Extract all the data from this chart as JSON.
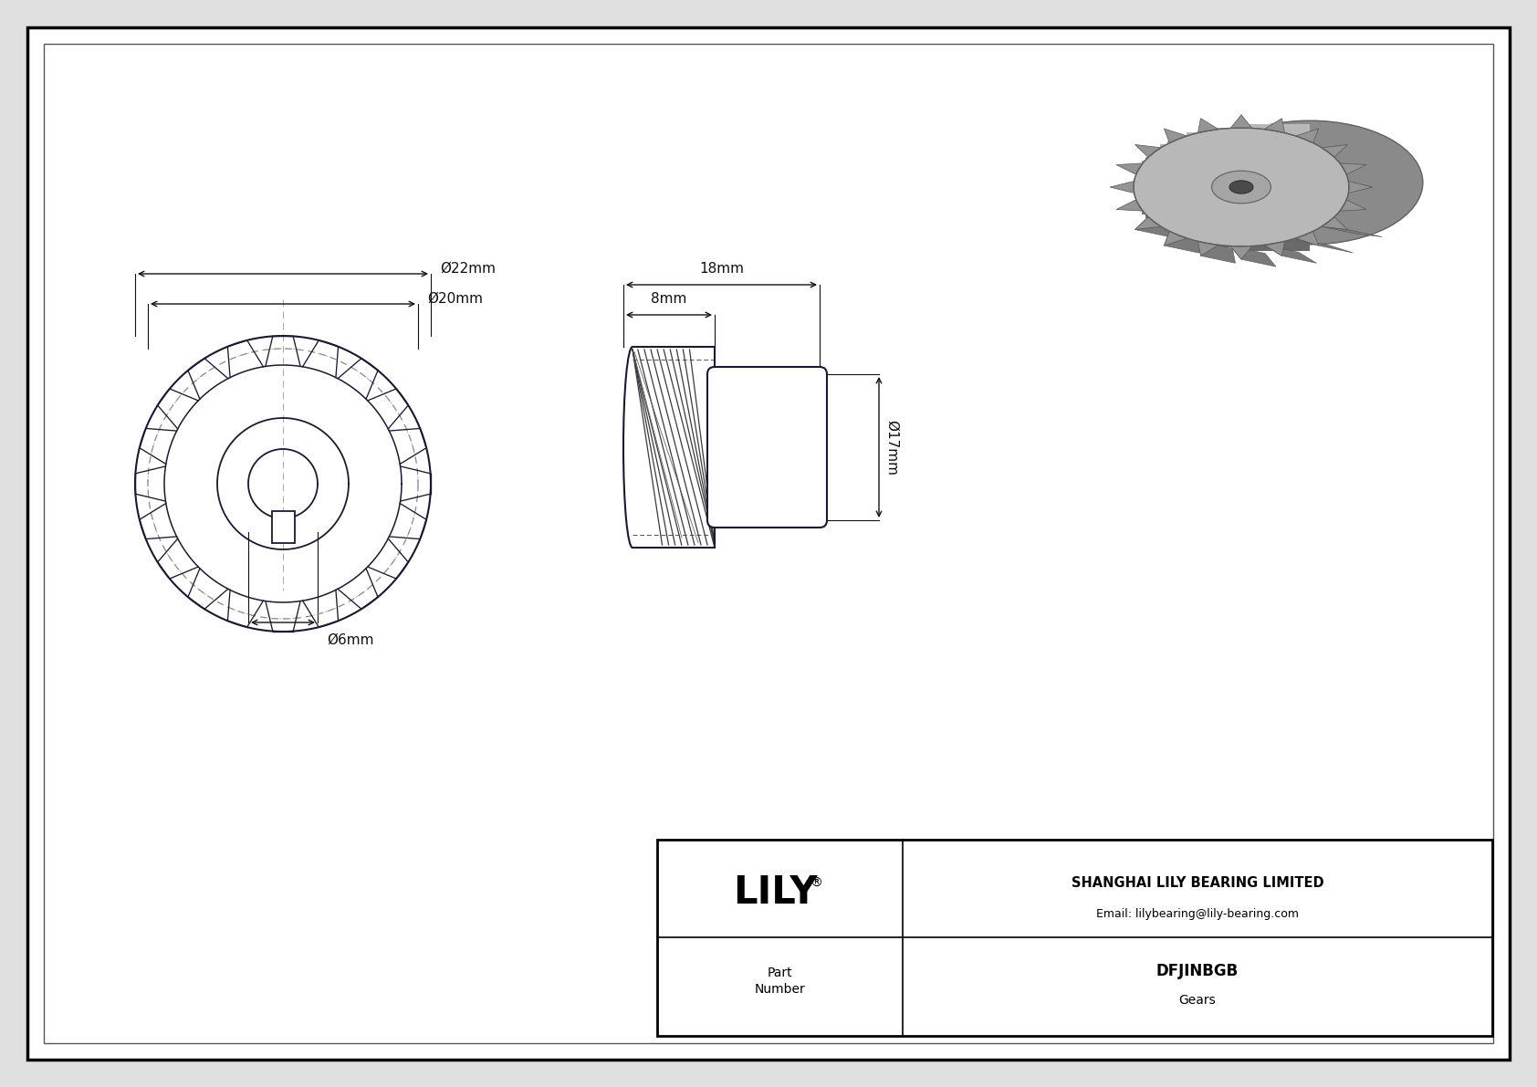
{
  "bg_color": "#e0e0e0",
  "drawing_bg": "#ffffff",
  "line_color": "#1a1a2e",
  "dim_color": "#111111",
  "company": "SHANGHAI LILY BEARING LIMITED",
  "email": "Email: lilybearing@lily-bearing.com",
  "part_number": "DFJINBGB",
  "part_type": "Gears",
  "num_teeth": 20,
  "dim_outer_d": "Ø22mm",
  "dim_pitch_d": "Ø20mm",
  "dim_bore_d": "Ø6mm",
  "dim_width_18": "18mm",
  "dim_hub_w_8": "8mm",
  "dim_height_17": "Ø17mm"
}
